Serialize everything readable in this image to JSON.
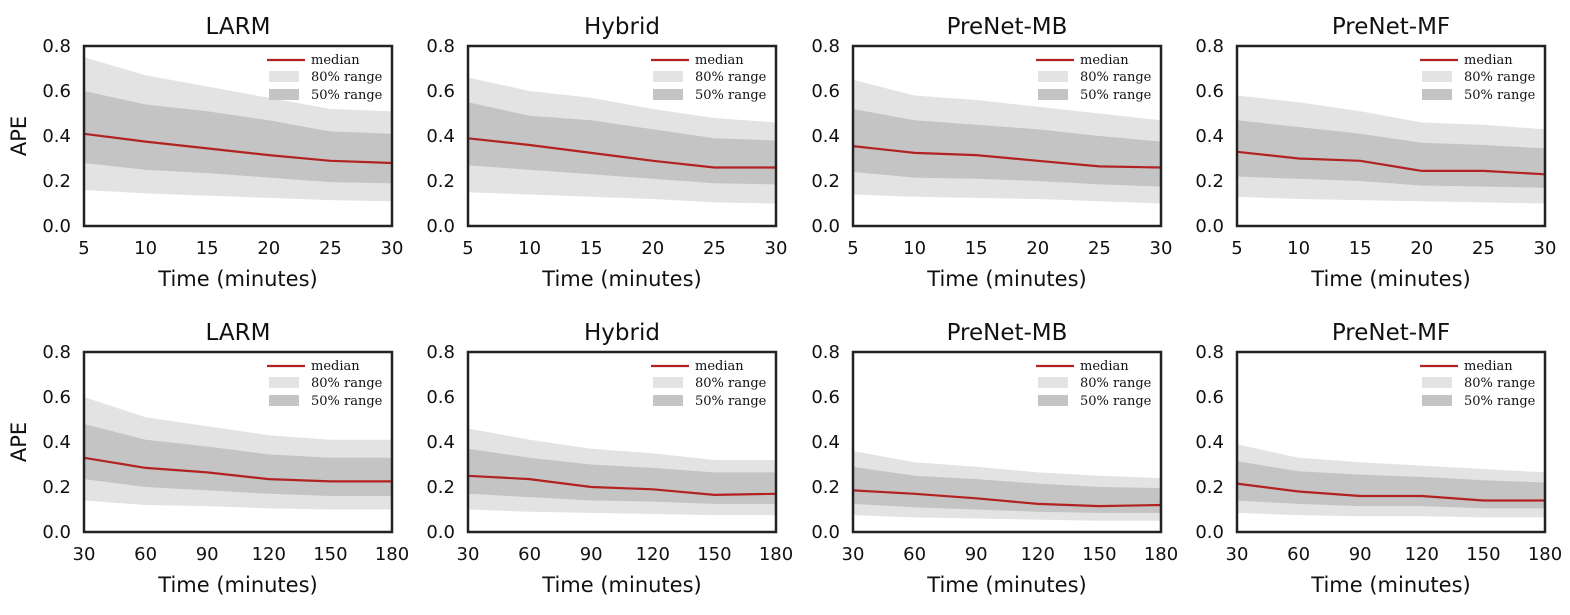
{
  "figure": {
    "legend_labels": {
      "median": "median",
      "r80": "80% range",
      "r50": "50% range"
    },
    "colors": {
      "median": "#b22222",
      "r80": "#e3e3e3",
      "r50": "#c4c4c4",
      "frame": "#222222"
    }
  },
  "chart_data": [
    {
      "type": "area",
      "title": "LARM",
      "xlabel": "Time (minutes)",
      "ylabel": "APE",
      "x": [
        5,
        10,
        15,
        20,
        25,
        30
      ],
      "xlim": [
        5,
        30
      ],
      "ylim": [
        0,
        0.8
      ],
      "xticks": [
        "5",
        "10",
        "15",
        "20",
        "25",
        "30"
      ],
      "yticks": [
        "0.0",
        "0.2",
        "0.4",
        "0.6",
        "0.8"
      ],
      "grid": false,
      "legend": "top-right",
      "series": [
        {
          "name": "median",
          "values": [
            0.41,
            0.375,
            0.345,
            0.315,
            0.29,
            0.28
          ]
        },
        {
          "name": "80% range",
          "lower": [
            0.16,
            0.145,
            0.135,
            0.125,
            0.115,
            0.11
          ],
          "upper": [
            0.75,
            0.67,
            0.62,
            0.57,
            0.52,
            0.51
          ]
        },
        {
          "name": "50% range",
          "lower": [
            0.28,
            0.25,
            0.235,
            0.215,
            0.195,
            0.19
          ],
          "upper": [
            0.6,
            0.54,
            0.51,
            0.47,
            0.42,
            0.41
          ]
        }
      ]
    },
    {
      "type": "area",
      "title": "Hybrid",
      "xlabel": "Time (minutes)",
      "ylabel": "",
      "x": [
        5,
        10,
        15,
        20,
        25,
        30
      ],
      "xlim": [
        5,
        30
      ],
      "ylim": [
        0,
        0.8
      ],
      "xticks": [
        "5",
        "10",
        "15",
        "20",
        "25",
        "30"
      ],
      "yticks": [
        "0.0",
        "0.2",
        "0.4",
        "0.6",
        "0.8"
      ],
      "grid": false,
      "legend": "top-right",
      "series": [
        {
          "name": "median",
          "values": [
            0.39,
            0.36,
            0.325,
            0.29,
            0.26,
            0.26
          ]
        },
        {
          "name": "80% range",
          "lower": [
            0.15,
            0.14,
            0.13,
            0.12,
            0.105,
            0.1
          ],
          "upper": [
            0.66,
            0.6,
            0.57,
            0.52,
            0.48,
            0.46
          ]
        },
        {
          "name": "50% range",
          "lower": [
            0.27,
            0.25,
            0.23,
            0.21,
            0.19,
            0.185
          ],
          "upper": [
            0.55,
            0.49,
            0.47,
            0.43,
            0.39,
            0.38
          ]
        }
      ]
    },
    {
      "type": "area",
      "title": "PreNet-MB",
      "xlabel": "Time (minutes)",
      "ylabel": "",
      "x": [
        5,
        10,
        15,
        20,
        25,
        30
      ],
      "xlim": [
        5,
        30
      ],
      "ylim": [
        0,
        0.8
      ],
      "xticks": [
        "5",
        "10",
        "15",
        "20",
        "25",
        "30"
      ],
      "yticks": [
        "0.0",
        "0.2",
        "0.4",
        "0.6",
        "0.8"
      ],
      "grid": false,
      "legend": "top-right",
      "series": [
        {
          "name": "median",
          "values": [
            0.355,
            0.325,
            0.315,
            0.29,
            0.265,
            0.26
          ]
        },
        {
          "name": "80% range",
          "lower": [
            0.14,
            0.13,
            0.125,
            0.12,
            0.11,
            0.1
          ],
          "upper": [
            0.65,
            0.58,
            0.56,
            0.53,
            0.5,
            0.47
          ]
        },
        {
          "name": "50% range",
          "lower": [
            0.24,
            0.215,
            0.21,
            0.2,
            0.185,
            0.175
          ],
          "upper": [
            0.52,
            0.47,
            0.45,
            0.43,
            0.4,
            0.375
          ]
        }
      ]
    },
    {
      "type": "area",
      "title": "PreNet-MF",
      "xlabel": "Time (minutes)",
      "ylabel": "",
      "x": [
        5,
        10,
        15,
        20,
        25,
        30
      ],
      "xlim": [
        5,
        30
      ],
      "ylim": [
        0,
        0.8
      ],
      "xticks": [
        "5",
        "10",
        "15",
        "20",
        "25",
        "30"
      ],
      "yticks": [
        "0.0",
        "0.2",
        "0.4",
        "0.6",
        "0.8"
      ],
      "grid": false,
      "legend": "top-right",
      "series": [
        {
          "name": "median",
          "values": [
            0.33,
            0.3,
            0.29,
            0.245,
            0.245,
            0.23
          ]
        },
        {
          "name": "80% range",
          "lower": [
            0.13,
            0.12,
            0.115,
            0.11,
            0.105,
            0.1
          ],
          "upper": [
            0.58,
            0.55,
            0.51,
            0.46,
            0.45,
            0.43
          ]
        },
        {
          "name": "50% range",
          "lower": [
            0.22,
            0.21,
            0.2,
            0.18,
            0.175,
            0.17
          ],
          "upper": [
            0.47,
            0.44,
            0.41,
            0.37,
            0.36,
            0.345
          ]
        }
      ]
    },
    {
      "type": "area",
      "title": "LARM",
      "xlabel": "Time (minutes)",
      "ylabel": "APE",
      "x": [
        30,
        60,
        90,
        120,
        150,
        180
      ],
      "xlim": [
        30,
        180
      ],
      "ylim": [
        0,
        0.8
      ],
      "xticks": [
        "30",
        "60",
        "90",
        "120",
        "150",
        "180"
      ],
      "yticks": [
        "0.0",
        "0.2",
        "0.4",
        "0.6",
        "0.8"
      ],
      "grid": false,
      "legend": "top-right",
      "series": [
        {
          "name": "median",
          "values": [
            0.33,
            0.285,
            0.265,
            0.235,
            0.225,
            0.225
          ]
        },
        {
          "name": "80% range",
          "lower": [
            0.14,
            0.12,
            0.115,
            0.105,
            0.1,
            0.1
          ],
          "upper": [
            0.6,
            0.51,
            0.47,
            0.43,
            0.41,
            0.41
          ]
        },
        {
          "name": "50% range",
          "lower": [
            0.235,
            0.2,
            0.185,
            0.17,
            0.16,
            0.16
          ],
          "upper": [
            0.48,
            0.41,
            0.38,
            0.345,
            0.33,
            0.33
          ]
        }
      ]
    },
    {
      "type": "area",
      "title": "Hybrid",
      "xlabel": "Time (minutes)",
      "ylabel": "",
      "x": [
        30,
        60,
        90,
        120,
        150,
        180
      ],
      "xlim": [
        30,
        180
      ],
      "ylim": [
        0,
        0.8
      ],
      "xticks": [
        "30",
        "60",
        "90",
        "120",
        "150",
        "180"
      ],
      "yticks": [
        "0.0",
        "0.2",
        "0.4",
        "0.6",
        "0.8"
      ],
      "grid": false,
      "legend": "top-right",
      "series": [
        {
          "name": "median",
          "values": [
            0.25,
            0.235,
            0.2,
            0.19,
            0.165,
            0.17
          ]
        },
        {
          "name": "80% range",
          "lower": [
            0.1,
            0.09,
            0.085,
            0.08,
            0.075,
            0.075
          ],
          "upper": [
            0.46,
            0.41,
            0.37,
            0.35,
            0.32,
            0.32
          ]
        },
        {
          "name": "50% range",
          "lower": [
            0.17,
            0.155,
            0.14,
            0.135,
            0.125,
            0.125
          ],
          "upper": [
            0.37,
            0.33,
            0.3,
            0.285,
            0.265,
            0.265
          ]
        }
      ]
    },
    {
      "type": "area",
      "title": "PreNet-MB",
      "xlabel": "Time (minutes)",
      "ylabel": "",
      "x": [
        30,
        60,
        90,
        120,
        150,
        180
      ],
      "xlim": [
        30,
        180
      ],
      "ylim": [
        0,
        0.8
      ],
      "xticks": [
        "30",
        "60",
        "90",
        "120",
        "150",
        "180"
      ],
      "yticks": [
        "0.0",
        "0.2",
        "0.4",
        "0.6",
        "0.8"
      ],
      "grid": false,
      "legend": "top-right",
      "series": [
        {
          "name": "median",
          "values": [
            0.185,
            0.17,
            0.15,
            0.125,
            0.115,
            0.12
          ]
        },
        {
          "name": "80% range",
          "lower": [
            0.075,
            0.065,
            0.06,
            0.055,
            0.05,
            0.05
          ],
          "upper": [
            0.36,
            0.31,
            0.29,
            0.265,
            0.25,
            0.24
          ]
        },
        {
          "name": "50% range",
          "lower": [
            0.125,
            0.11,
            0.1,
            0.09,
            0.085,
            0.085
          ],
          "upper": [
            0.29,
            0.25,
            0.235,
            0.215,
            0.2,
            0.195
          ]
        }
      ]
    },
    {
      "type": "area",
      "title": "PreNet-MF",
      "xlabel": "Time (minutes)",
      "ylabel": "",
      "x": [
        30,
        60,
        90,
        120,
        150,
        180
      ],
      "xlim": [
        30,
        180
      ],
      "ylim": [
        0,
        0.8
      ],
      "xticks": [
        "30",
        "60",
        "90",
        "120",
        "150",
        "180"
      ],
      "yticks": [
        "0.0",
        "0.2",
        "0.4",
        "0.6",
        "0.8"
      ],
      "grid": false,
      "legend": "top-right",
      "series": [
        {
          "name": "median",
          "values": [
            0.215,
            0.18,
            0.16,
            0.16,
            0.14,
            0.14
          ]
        },
        {
          "name": "80% range",
          "lower": [
            0.085,
            0.075,
            0.07,
            0.07,
            0.065,
            0.065
          ],
          "upper": [
            0.39,
            0.33,
            0.31,
            0.295,
            0.28,
            0.265
          ]
        },
        {
          "name": "50% range",
          "lower": [
            0.14,
            0.125,
            0.115,
            0.115,
            0.105,
            0.105
          ],
          "upper": [
            0.315,
            0.27,
            0.255,
            0.245,
            0.23,
            0.22
          ]
        }
      ]
    }
  ]
}
